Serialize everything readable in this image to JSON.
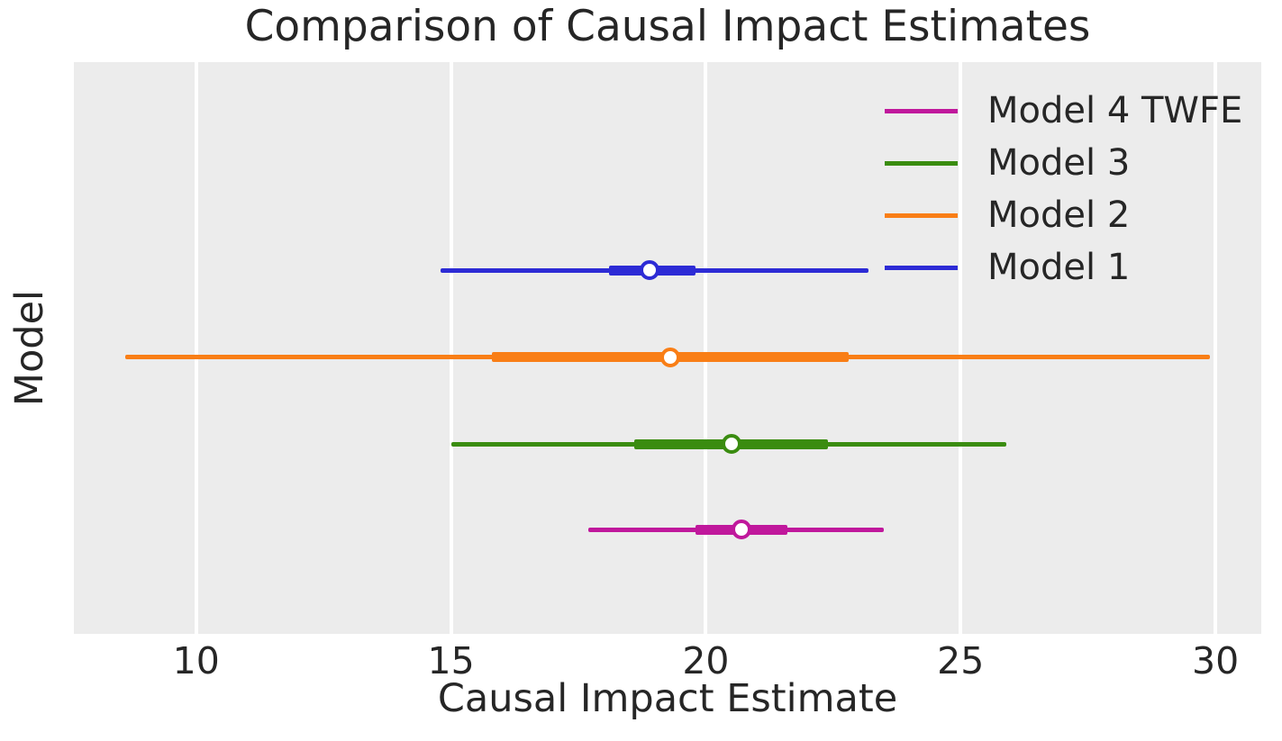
{
  "chart_data": {
    "type": "pointrange",
    "title": "Comparison of Causal Impact Estimates",
    "xlabel": "Causal Impact Estimate",
    "ylabel": "Model",
    "xlim": [
      7.6,
      30.9
    ],
    "xticks": [
      10,
      15,
      20,
      25,
      30
    ],
    "grid": {
      "vertical": true,
      "horizontal": false,
      "color": "#ffffff"
    },
    "plot_background": "#ececec",
    "figure_background": "#ffffff",
    "text_color": "#262626",
    "legend_position": "upper right",
    "legend_entries": [
      "Model 4 TWFE",
      "Model 3",
      "Model 2",
      "Model 1"
    ],
    "series": [
      {
        "name": "Model 1",
        "color": "#2d2bd5",
        "estimate": 18.9,
        "inner_interval": [
          18.1,
          19.8
        ],
        "outer_interval": [
          14.8,
          23.2
        ],
        "y_frac": 0.364
      },
      {
        "name": "Model 2",
        "color": "#f97e16",
        "estimate": 19.3,
        "inner_interval": [
          15.8,
          22.8
        ],
        "outer_interval": [
          8.6,
          29.9
        ],
        "y_frac": 0.516
      },
      {
        "name": "Model 3",
        "color": "#3a8c10",
        "estimate": 20.5,
        "inner_interval": [
          18.6,
          22.4
        ],
        "outer_interval": [
          15.0,
          25.9
        ],
        "y_frac": 0.668
      },
      {
        "name": "Model 4 TWFE",
        "color": "#c0189c",
        "estimate": 20.7,
        "inner_interval": [
          19.8,
          21.6
        ],
        "outer_interval": [
          17.7,
          23.5
        ],
        "y_frac": 0.818
      }
    ]
  }
}
